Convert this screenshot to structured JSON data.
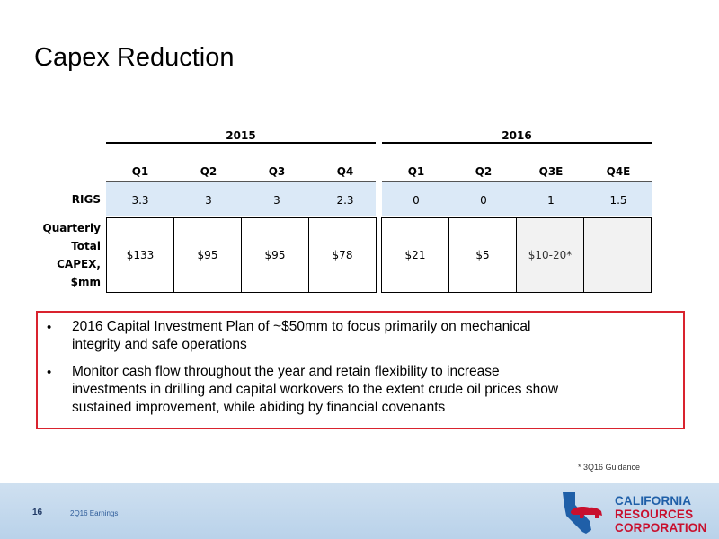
{
  "slide": {
    "title": "Capex Reduction",
    "page_number": "16",
    "footer_label": "2Q16 Earnings",
    "footnote": "* 3Q16 Guidance"
  },
  "table": {
    "years": [
      "2015",
      "2016"
    ],
    "quarters": [
      "Q1",
      "Q2",
      "Q3",
      "Q4",
      "Q1",
      "Q2",
      "Q3E",
      "Q4E"
    ],
    "row_labels": {
      "rigs": "RIGS",
      "capex": [
        "Quarterly",
        "Total",
        "CAPEX,",
        "$mm"
      ]
    },
    "rigs": [
      "3.3",
      "3",
      "3",
      "2.3",
      "0",
      "0",
      "1",
      "1.5"
    ],
    "capex": [
      "$133",
      "$95",
      "$95",
      "$78",
      "$21",
      "$5",
      "$10-20*",
      ""
    ]
  },
  "callout": {
    "bullets": [
      [
        "2016 Capital Investment Plan of ~$50mm to focus primarily on mechanical",
        "integrity and safe operations"
      ],
      [
        "Monitor cash flow throughout the year and retain flexibility to increase",
        "investments in drilling and capital workovers to the extent crude oil prices show",
        "sustained improvement, while abiding by financial covenants"
      ]
    ]
  },
  "logo": {
    "lines": [
      "CALIFORNIA",
      "RESOURCES",
      "CORPORATION"
    ],
    "colors": {
      "red": "#c8102e",
      "blue": "#1f5fa8"
    }
  },
  "colors": {
    "accent_red": "#d9232e",
    "rig_band": "#dbe9f7",
    "footer_blue": "#c6dbef"
  }
}
